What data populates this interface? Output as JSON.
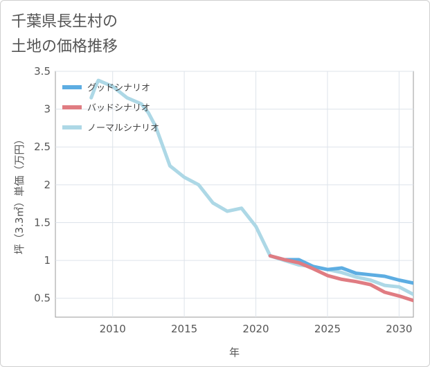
{
  "title_lines": [
    "千葉県長生村の",
    "土地の価格推移"
  ],
  "chart_data": {
    "type": "line",
    "xlabel": "年",
    "ylabel": "坪（3.3㎡）単価（万円）",
    "xlim": [
      2006,
      2031
    ],
    "ylim": [
      0.25,
      3.5
    ],
    "x_ticks": [
      2010,
      2015,
      2020,
      2025,
      2030
    ],
    "y_ticks": [
      0.5,
      1,
      1.5,
      2,
      2.5,
      3,
      3.5
    ],
    "y_tick_labels": [
      "0.5",
      "1",
      "1.5",
      "2",
      "2.5",
      "3",
      "3.5"
    ],
    "grid": true,
    "legend_position": "top-left",
    "series": [
      {
        "name": "ノーマルシナリオ",
        "color": "#add8e6",
        "x": [
          2008.5,
          2008.8,
          2009,
          2010,
          2011,
          2012,
          2012.5,
          2013,
          2014,
          2015,
          2016,
          2017,
          2018,
          2019,
          2020,
          2021,
          2022,
          2023,
          2024,
          2025,
          2026,
          2027,
          2028,
          2029,
          2030,
          2031
        ],
        "y": [
          3.15,
          3.3,
          3.38,
          3.3,
          3.15,
          3.07,
          2.95,
          2.77,
          2.25,
          2.1,
          2.0,
          1.76,
          1.65,
          1.69,
          1.45,
          1.06,
          1.0,
          0.94,
          0.92,
          0.88,
          0.84,
          0.78,
          0.74,
          0.67,
          0.65,
          0.55
        ]
      },
      {
        "name": "グッドシナリオ",
        "color": "#5dade2",
        "x": [
          2021,
          2022,
          2023,
          2024,
          2025,
          2026,
          2027,
          2028,
          2029,
          2030,
          2031
        ],
        "y": [
          1.06,
          1.01,
          1.01,
          0.92,
          0.88,
          0.9,
          0.83,
          0.81,
          0.79,
          0.74,
          0.7
        ]
      },
      {
        "name": "バッドシナリオ",
        "color": "#e07c82",
        "x": [
          2021,
          2022,
          2023,
          2024,
          2025,
          2026,
          2027,
          2028,
          2029,
          2030,
          2031
        ],
        "y": [
          1.06,
          1.01,
          0.97,
          0.89,
          0.8,
          0.75,
          0.72,
          0.68,
          0.58,
          0.53,
          0.47
        ]
      }
    ],
    "legend": [
      {
        "name": "グッドシナリオ",
        "color": "#5dade2"
      },
      {
        "name": "バッドシナリオ",
        "color": "#e07c82"
      },
      {
        "name": "ノーマルシナリオ",
        "color": "#add8e6"
      }
    ]
  }
}
